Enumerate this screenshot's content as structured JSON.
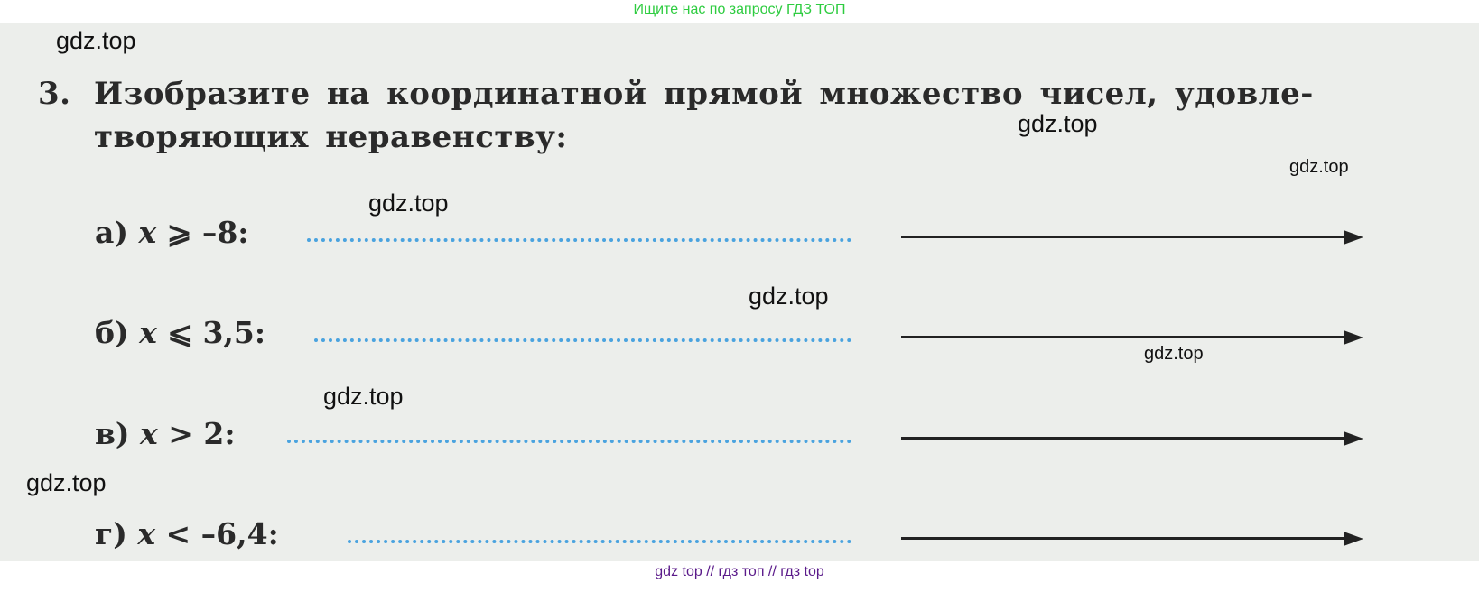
{
  "top_banner": "Ищите нас по запросу ГДЗ ТОП",
  "bottom_banner": "gdz top  //  гдз топ  //  гдз top",
  "task": {
    "number": "3.",
    "line1": "Изобразите на координатной прямой множество чисел, удовле-",
    "line2": "творяющих неравенству:"
  },
  "items": [
    {
      "letter": "а)",
      "var": "x",
      "rel": "⩾ –8:"
    },
    {
      "letter": "б)",
      "var": "x",
      "rel": "⩽ 3,5:"
    },
    {
      "letter": "в)",
      "var": "x",
      "rel": "> 2:"
    },
    {
      "letter": "г)",
      "var": "x",
      "rel": "< –6,4:"
    }
  ],
  "watermark": "gdz.top",
  "colors": {
    "dotted_line": "#4aa3df",
    "banner_top": "#2ecc40",
    "banner_bottom": "#5a1a8a"
  }
}
